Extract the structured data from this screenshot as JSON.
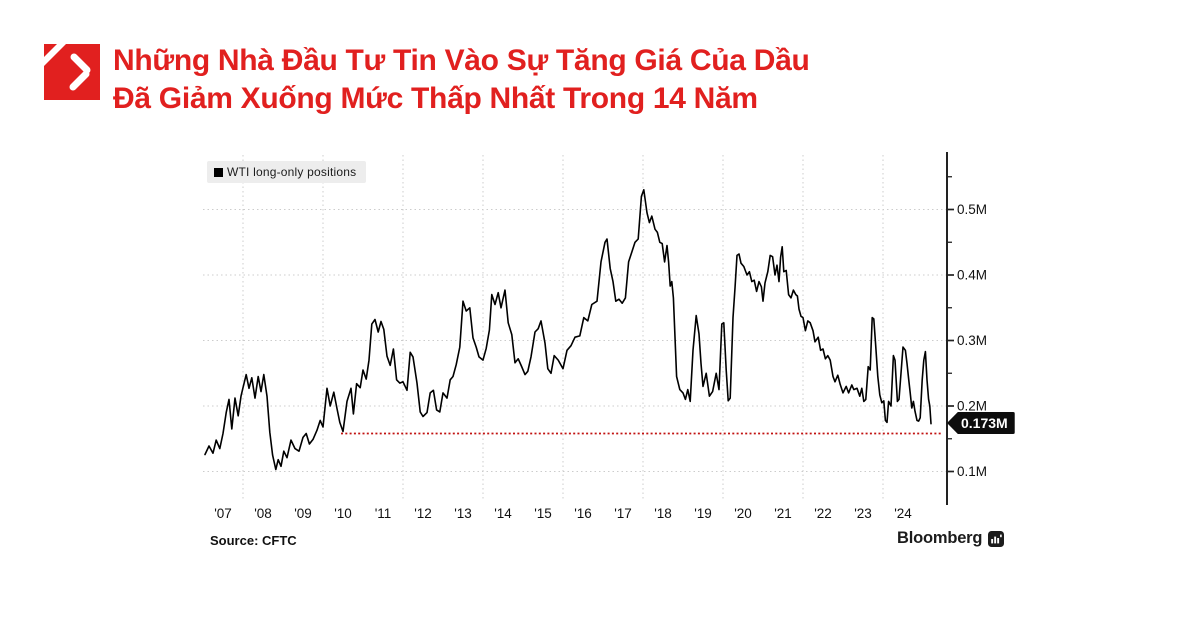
{
  "header": {
    "title_line1": "Những Nhà Đầu Tư Tin Vào Sự Tăng Giá Của Dầu",
    "title_line2": "Đã Giảm Xuống Mức Thấp Nhất Trong 14 Năm",
    "title_color": "#e1201f"
  },
  "chart_data": {
    "type": "line",
    "legend": "WTI long-only positions",
    "source": "Source: CFTC",
    "brand": "Bloomberg",
    "last_value_label": "0.173M",
    "line_color": "#000000",
    "grid": true,
    "legend_position": "top-left",
    "xlim": [
      2007.0,
      2025.6
    ],
    "ylim": [
      0.057,
      0.583
    ],
    "ylabel": "",
    "xlabel": "",
    "threshold": {
      "value": 0.158,
      "start": 2010.45,
      "end": 2025.45,
      "color": "#c11211"
    },
    "y_axis": {
      "side": "right",
      "ticks": [
        {
          "v": 0.1,
          "label": "0.1M"
        },
        {
          "v": 0.2,
          "label": "0.2M"
        },
        {
          "v": 0.3,
          "label": "0.3M"
        },
        {
          "v": 0.4,
          "label": "0.4M"
        },
        {
          "v": 0.5,
          "label": "0.5M"
        }
      ],
      "minor_ticks": [
        0.15,
        0.25,
        0.35,
        0.45,
        0.55
      ]
    },
    "x_axis": {
      "gridline_years": [
        2008,
        2010,
        2012,
        2014,
        2016,
        2018,
        2020,
        2022,
        2024
      ],
      "labels": [
        {
          "t": 2007.5,
          "label": "'07"
        },
        {
          "t": 2008.5,
          "label": "'08"
        },
        {
          "t": 2009.5,
          "label": "'09"
        },
        {
          "t": 2010.5,
          "label": "'10"
        },
        {
          "t": 2011.5,
          "label": "'11"
        },
        {
          "t": 2012.5,
          "label": "'12"
        },
        {
          "t": 2013.5,
          "label": "'13"
        },
        {
          "t": 2014.5,
          "label": "'14"
        },
        {
          "t": 2015.5,
          "label": "'15"
        },
        {
          "t": 2016.5,
          "label": "'16"
        },
        {
          "t": 2017.5,
          "label": "'17"
        },
        {
          "t": 2018.5,
          "label": "'18"
        },
        {
          "t": 2019.5,
          "label": "'19"
        },
        {
          "t": 2020.5,
          "label": "'20"
        },
        {
          "t": 2021.5,
          "label": "'21"
        },
        {
          "t": 2022.5,
          "label": "'22"
        },
        {
          "t": 2023.5,
          "label": "'23"
        },
        {
          "t": 2024.5,
          "label": "'24"
        }
      ]
    },
    "points": [
      [
        2007.05,
        0.126
      ],
      [
        2007.15,
        0.139
      ],
      [
        2007.25,
        0.128
      ],
      [
        2007.33,
        0.148
      ],
      [
        2007.42,
        0.135
      ],
      [
        2007.5,
        0.158
      ],
      [
        2007.58,
        0.19
      ],
      [
        2007.65,
        0.21
      ],
      [
        2007.72,
        0.165
      ],
      [
        2007.8,
        0.212
      ],
      [
        2007.88,
        0.185
      ],
      [
        2007.95,
        0.215
      ],
      [
        2008.0,
        0.228
      ],
      [
        2008.08,
        0.248
      ],
      [
        2008.15,
        0.227
      ],
      [
        2008.22,
        0.243
      ],
      [
        2008.3,
        0.212
      ],
      [
        2008.38,
        0.245
      ],
      [
        2008.45,
        0.222
      ],
      [
        2008.52,
        0.248
      ],
      [
        2008.6,
        0.215
      ],
      [
        2008.67,
        0.16
      ],
      [
        2008.74,
        0.125
      ],
      [
        2008.82,
        0.103
      ],
      [
        2008.88,
        0.118
      ],
      [
        2008.95,
        0.108
      ],
      [
        2009.02,
        0.131
      ],
      [
        2009.1,
        0.121
      ],
      [
        2009.2,
        0.148
      ],
      [
        2009.3,
        0.135
      ],
      [
        2009.4,
        0.131
      ],
      [
        2009.5,
        0.152
      ],
      [
        2009.58,
        0.158
      ],
      [
        2009.66,
        0.142
      ],
      [
        2009.75,
        0.149
      ],
      [
        2009.85,
        0.163
      ],
      [
        2009.93,
        0.178
      ],
      [
        2010.0,
        0.168
      ],
      [
        2010.1,
        0.227
      ],
      [
        2010.18,
        0.2
      ],
      [
        2010.27,
        0.221
      ],
      [
        2010.35,
        0.196
      ],
      [
        2010.42,
        0.175
      ],
      [
        2010.5,
        0.161
      ],
      [
        2010.6,
        0.207
      ],
      [
        2010.7,
        0.227
      ],
      [
        2010.76,
        0.188
      ],
      [
        2010.84,
        0.234
      ],
      [
        2010.93,
        0.228
      ],
      [
        2011.0,
        0.255
      ],
      [
        2011.08,
        0.241
      ],
      [
        2011.15,
        0.27
      ],
      [
        2011.22,
        0.325
      ],
      [
        2011.3,
        0.332
      ],
      [
        2011.38,
        0.313
      ],
      [
        2011.45,
        0.329
      ],
      [
        2011.52,
        0.317
      ],
      [
        2011.6,
        0.276
      ],
      [
        2011.68,
        0.262
      ],
      [
        2011.76,
        0.287
      ],
      [
        2011.84,
        0.24
      ],
      [
        2011.92,
        0.235
      ],
      [
        2012.0,
        0.237
      ],
      [
        2012.1,
        0.224
      ],
      [
        2012.18,
        0.282
      ],
      [
        2012.25,
        0.275
      ],
      [
        2012.35,
        0.235
      ],
      [
        2012.43,
        0.191
      ],
      [
        2012.5,
        0.184
      ],
      [
        2012.6,
        0.19
      ],
      [
        2012.68,
        0.22
      ],
      [
        2012.76,
        0.224
      ],
      [
        2012.84,
        0.194
      ],
      [
        2012.92,
        0.191
      ],
      [
        2013.0,
        0.22
      ],
      [
        2013.1,
        0.212
      ],
      [
        2013.18,
        0.24
      ],
      [
        2013.25,
        0.245
      ],
      [
        2013.33,
        0.263
      ],
      [
        2013.42,
        0.29
      ],
      [
        2013.5,
        0.36
      ],
      [
        2013.58,
        0.345
      ],
      [
        2013.67,
        0.35
      ],
      [
        2013.75,
        0.304
      ],
      [
        2013.83,
        0.29
      ],
      [
        2013.9,
        0.275
      ],
      [
        2014.0,
        0.27
      ],
      [
        2014.08,
        0.288
      ],
      [
        2014.16,
        0.316
      ],
      [
        2014.22,
        0.37
      ],
      [
        2014.3,
        0.355
      ],
      [
        2014.38,
        0.373
      ],
      [
        2014.45,
        0.35
      ],
      [
        2014.55,
        0.377
      ],
      [
        2014.63,
        0.327
      ],
      [
        2014.72,
        0.309
      ],
      [
        2014.8,
        0.266
      ],
      [
        2014.88,
        0.272
      ],
      [
        2014.96,
        0.261
      ],
      [
        2015.05,
        0.248
      ],
      [
        2015.12,
        0.253
      ],
      [
        2015.2,
        0.275
      ],
      [
        2015.3,
        0.313
      ],
      [
        2015.38,
        0.318
      ],
      [
        2015.45,
        0.33
      ],
      [
        2015.55,
        0.296
      ],
      [
        2015.62,
        0.257
      ],
      [
        2015.7,
        0.25
      ],
      [
        2015.78,
        0.277
      ],
      [
        2015.88,
        0.27
      ],
      [
        2016.0,
        0.257
      ],
      [
        2016.1,
        0.285
      ],
      [
        2016.2,
        0.292
      ],
      [
        2016.3,
        0.305
      ],
      [
        2016.42,
        0.307
      ],
      [
        2016.52,
        0.335
      ],
      [
        2016.62,
        0.33
      ],
      [
        2016.72,
        0.355
      ],
      [
        2016.85,
        0.36
      ],
      [
        2016.95,
        0.42
      ],
      [
        2017.05,
        0.45
      ],
      [
        2017.1,
        0.455
      ],
      [
        2017.18,
        0.41
      ],
      [
        2017.25,
        0.39
      ],
      [
        2017.32,
        0.36
      ],
      [
        2017.4,
        0.363
      ],
      [
        2017.48,
        0.357
      ],
      [
        2017.56,
        0.365
      ],
      [
        2017.64,
        0.42
      ],
      [
        2017.72,
        0.435
      ],
      [
        2017.8,
        0.45
      ],
      [
        2017.88,
        0.455
      ],
      [
        2017.96,
        0.52
      ],
      [
        2018.02,
        0.53
      ],
      [
        2018.1,
        0.495
      ],
      [
        2018.16,
        0.48
      ],
      [
        2018.22,
        0.49
      ],
      [
        2018.3,
        0.47
      ],
      [
        2018.36,
        0.465
      ],
      [
        2018.42,
        0.45
      ],
      [
        2018.48,
        0.448
      ],
      [
        2018.54,
        0.42
      ],
      [
        2018.6,
        0.445
      ],
      [
        2018.64,
        0.42
      ],
      [
        2018.68,
        0.383
      ],
      [
        2018.72,
        0.39
      ],
      [
        2018.76,
        0.365
      ],
      [
        2018.84,
        0.245
      ],
      [
        2018.92,
        0.225
      ],
      [
        2019.0,
        0.22
      ],
      [
        2019.06,
        0.21
      ],
      [
        2019.12,
        0.225
      ],
      [
        2019.18,
        0.207
      ],
      [
        2019.25,
        0.285
      ],
      [
        2019.33,
        0.338
      ],
      [
        2019.4,
        0.31
      ],
      [
        2019.45,
        0.265
      ],
      [
        2019.5,
        0.23
      ],
      [
        2019.58,
        0.25
      ],
      [
        2019.66,
        0.215
      ],
      [
        2019.74,
        0.222
      ],
      [
        2019.83,
        0.25
      ],
      [
        2019.9,
        0.225
      ],
      [
        2019.97,
        0.325
      ],
      [
        2020.02,
        0.327
      ],
      [
        2020.08,
        0.255
      ],
      [
        2020.13,
        0.208
      ],
      [
        2020.18,
        0.212
      ],
      [
        2020.25,
        0.335
      ],
      [
        2020.3,
        0.38
      ],
      [
        2020.35,
        0.43
      ],
      [
        2020.4,
        0.432
      ],
      [
        2020.45,
        0.418
      ],
      [
        2020.52,
        0.413
      ],
      [
        2020.6,
        0.4
      ],
      [
        2020.66,
        0.405
      ],
      [
        2020.72,
        0.39
      ],
      [
        2020.78,
        0.392
      ],
      [
        2020.84,
        0.375
      ],
      [
        2020.9,
        0.39
      ],
      [
        2020.96,
        0.382
      ],
      [
        2021.0,
        0.36
      ],
      [
        2021.05,
        0.388
      ],
      [
        2021.12,
        0.405
      ],
      [
        2021.18,
        0.43
      ],
      [
        2021.24,
        0.428
      ],
      [
        2021.3,
        0.4
      ],
      [
        2021.35,
        0.415
      ],
      [
        2021.4,
        0.39
      ],
      [
        2021.44,
        0.427
      ],
      [
        2021.48,
        0.443
      ],
      [
        2021.52,
        0.405
      ],
      [
        2021.58,
        0.407
      ],
      [
        2021.64,
        0.37
      ],
      [
        2021.7,
        0.365
      ],
      [
        2021.76,
        0.377
      ],
      [
        2021.82,
        0.37
      ],
      [
        2021.86,
        0.368
      ],
      [
        2021.9,
        0.348
      ],
      [
        2021.95,
        0.337
      ],
      [
        2022.0,
        0.335
      ],
      [
        2022.06,
        0.315
      ],
      [
        2022.12,
        0.33
      ],
      [
        2022.18,
        0.327
      ],
      [
        2022.25,
        0.315
      ],
      [
        2022.3,
        0.298
      ],
      [
        2022.38,
        0.305
      ],
      [
        2022.44,
        0.285
      ],
      [
        2022.5,
        0.287
      ],
      [
        2022.56,
        0.272
      ],
      [
        2022.62,
        0.277
      ],
      [
        2022.68,
        0.27
      ],
      [
        2022.75,
        0.245
      ],
      [
        2022.8,
        0.237
      ],
      [
        2022.87,
        0.247
      ],
      [
        2022.93,
        0.233
      ],
      [
        2023.0,
        0.22
      ],
      [
        2023.08,
        0.23
      ],
      [
        2023.14,
        0.22
      ],
      [
        2023.22,
        0.232
      ],
      [
        2023.27,
        0.225
      ],
      [
        2023.35,
        0.227
      ],
      [
        2023.42,
        0.215
      ],
      [
        2023.47,
        0.227
      ],
      [
        2023.52,
        0.207
      ],
      [
        2023.57,
        0.21
      ],
      [
        2023.63,
        0.26
      ],
      [
        2023.68,
        0.255
      ],
      [
        2023.73,
        0.335
      ],
      [
        2023.77,
        0.333
      ],
      [
        2023.82,
        0.29
      ],
      [
        2023.87,
        0.245
      ],
      [
        2023.92,
        0.217
      ],
      [
        2023.97,
        0.205
      ],
      [
        2024.02,
        0.208
      ],
      [
        2024.06,
        0.178
      ],
      [
        2024.1,
        0.175
      ],
      [
        2024.14,
        0.207
      ],
      [
        2024.2,
        0.2
      ],
      [
        2024.26,
        0.277
      ],
      [
        2024.3,
        0.27
      ],
      [
        2024.36,
        0.207
      ],
      [
        2024.4,
        0.21
      ],
      [
        2024.46,
        0.258
      ],
      [
        2024.5,
        0.29
      ],
      [
        2024.56,
        0.285
      ],
      [
        2024.6,
        0.265
      ],
      [
        2024.64,
        0.242
      ],
      [
        2024.68,
        0.22
      ],
      [
        2024.72,
        0.197
      ],
      [
        2024.76,
        0.207
      ],
      [
        2024.8,
        0.192
      ],
      [
        2024.85,
        0.178
      ],
      [
        2024.89,
        0.177
      ],
      [
        2024.93,
        0.182
      ],
      [
        2024.98,
        0.24
      ],
      [
        2025.02,
        0.27
      ],
      [
        2025.06,
        0.283
      ],
      [
        2025.1,
        0.24
      ],
      [
        2025.14,
        0.21
      ],
      [
        2025.17,
        0.2
      ],
      [
        2025.2,
        0.173
      ]
    ]
  }
}
